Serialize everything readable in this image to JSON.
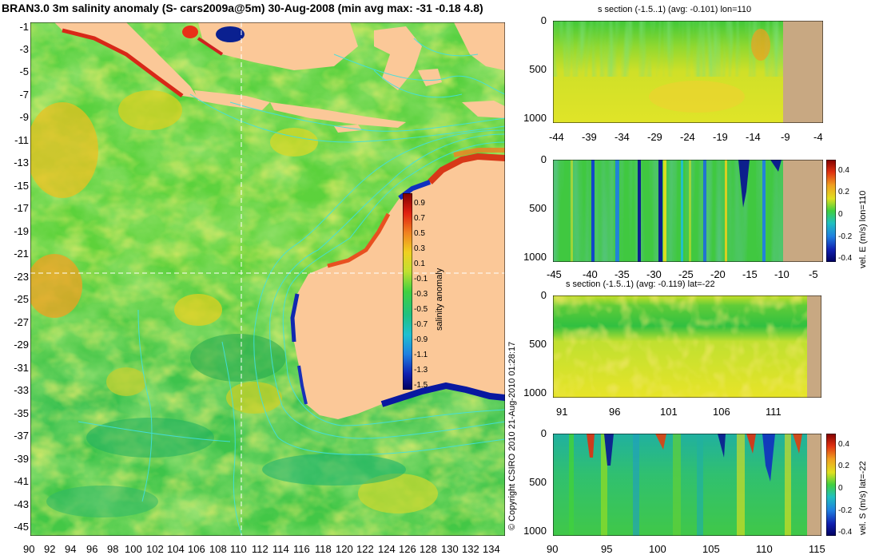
{
  "title": "BRAN3.0 3m salinity anomaly (S- cars2009a@5m) 30-Aug-2008 (min avg max: -31 -0.18 4.8)",
  "colors": {
    "land": "#fbc898",
    "land_section": "#c8a882",
    "contour": "#40e0e0",
    "crosshair": "#ffffff",
    "ocean_base": "#3cc840"
  },
  "main_map": {
    "x_ticks": [
      "90",
      "92",
      "94",
      "96",
      "98",
      "100",
      "102",
      "104",
      "106",
      "108",
      "110",
      "112",
      "114",
      "116",
      "118",
      "120",
      "122",
      "124",
      "126",
      "128",
      "130",
      "132",
      "134"
    ],
    "y_ticks": [
      "-1",
      "-3",
      "-5",
      "-7",
      "-9",
      "-11",
      "-13",
      "-15",
      "-17",
      "-19",
      "-21",
      "-23",
      "-25",
      "-27",
      "-29",
      "-31",
      "-33",
      "-35",
      "-37",
      "-39",
      "-41",
      "-43",
      "-45"
    ],
    "crosshair": {
      "lon": 110,
      "lat": -22
    },
    "lon_range": [
      90,
      135
    ],
    "lat_range": [
      -45,
      0
    ]
  },
  "colorbar": {
    "label": "salinity anomaly",
    "ticks": [
      "0.9",
      "0.7",
      "0.5",
      "0.3",
      "0.1",
      "-0.1",
      "-0.3",
      "-0.5",
      "-0.7",
      "-0.9",
      "-1.1",
      "-1.3",
      "-1.5"
    ]
  },
  "copyright": "© Copyright CSIRO 2010   21-Aug-2010 01:28:17",
  "panels": {
    "p1": {
      "title": "s section (-1.5..1) (avg: -0.101) lon=110",
      "x_ticks": [
        "-44",
        "-39",
        "-34",
        "-29",
        "-24",
        "-19",
        "-14",
        "-9",
        "-4"
      ],
      "y_ticks": [
        "0",
        "500",
        "1000"
      ]
    },
    "p2": {
      "title": "",
      "x_ticks": [
        "-45",
        "-40",
        "-35",
        "-30",
        "-25",
        "-20",
        "-15",
        "-10",
        "-5"
      ],
      "y_ticks": [
        "0",
        "500",
        "1000"
      ],
      "cb_label": "vel. E (m/s) lon=110",
      "cb_ticks": [
        "0.4",
        "0.2",
        "0",
        "-0.2",
        "-0.4"
      ]
    },
    "p3": {
      "title": "s section (-1.5..1) (avg: -0.119) lat=-22",
      "x_ticks": [
        "91",
        "96",
        "101",
        "106",
        "111"
      ],
      "y_ticks": [
        "0",
        "500",
        "1000"
      ]
    },
    "p4": {
      "title": "",
      "x_ticks": [
        "90",
        "95",
        "100",
        "105",
        "110",
        "115"
      ],
      "y_ticks": [
        "0",
        "500",
        "1000"
      ],
      "cb_label": "vel. S (m/s) lat=-22",
      "cb_ticks": [
        "0.4",
        "0.2",
        "0",
        "-0.2",
        "-0.4"
      ]
    }
  }
}
